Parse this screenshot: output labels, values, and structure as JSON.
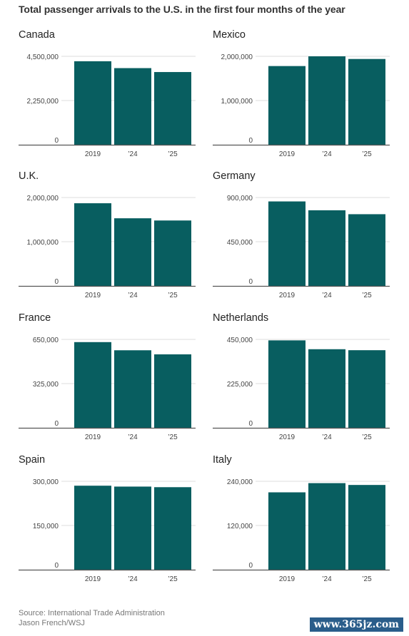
{
  "title": "Total passenger arrivals to the U.S. in the first four months of the year",
  "source_line": "Source: International Trade Administration",
  "credit_line": "Jason French/WSJ",
  "watermark": "www.365jz.com",
  "colors": {
    "bar": "#085e60",
    "grid": "#dddddd",
    "axis": "#555555",
    "tick_text": "#444444"
  },
  "chart_data": [
    {
      "type": "bar",
      "title": "Canada",
      "categories": [
        "2019",
        "’24",
        "’25"
      ],
      "values": [
        4250000,
        3900000,
        3700000
      ],
      "ylim": [
        0,
        4500000
      ],
      "yticks": [
        0,
        2250000,
        4500000
      ],
      "ytick_labels": [
        "0",
        "2,250,000",
        "4,500,000"
      ],
      "xlabel": "",
      "ylabel": "",
      "grid": true
    },
    {
      "type": "bar",
      "title": "Mexico",
      "categories": [
        "2019",
        "’24",
        "’25"
      ],
      "values": [
        1780000,
        2000000,
        1940000
      ],
      "ylim": [
        0,
        2000000
      ],
      "yticks": [
        0,
        1000000,
        2000000
      ],
      "ytick_labels": [
        "0",
        "1,000,000",
        "2,000,000"
      ],
      "xlabel": "",
      "ylabel": "",
      "grid": true
    },
    {
      "type": "bar",
      "title": "U.K.",
      "categories": [
        "2019",
        "’24",
        "’25"
      ],
      "values": [
        1870000,
        1530000,
        1480000
      ],
      "ylim": [
        0,
        2000000
      ],
      "yticks": [
        0,
        1000000,
        2000000
      ],
      "ytick_labels": [
        "0",
        "1,000,000",
        "2,000,000"
      ],
      "xlabel": "",
      "ylabel": "",
      "grid": true
    },
    {
      "type": "bar",
      "title": "Germany",
      "categories": [
        "2019",
        "’24",
        "’25"
      ],
      "values": [
        860000,
        770000,
        730000
      ],
      "ylim": [
        0,
        900000
      ],
      "yticks": [
        0,
        450000,
        900000
      ],
      "ytick_labels": [
        "0",
        "450,000",
        "900,000"
      ],
      "xlabel": "",
      "ylabel": "",
      "grid": true
    },
    {
      "type": "bar",
      "title": "France",
      "categories": [
        "2019",
        "’24",
        "’25"
      ],
      "values": [
        630000,
        570000,
        540000
      ],
      "ylim": [
        0,
        650000
      ],
      "yticks": [
        0,
        325000,
        650000
      ],
      "ytick_labels": [
        "0",
        "325,000",
        "650,000"
      ],
      "xlabel": "",
      "ylabel": "",
      "grid": true
    },
    {
      "type": "bar",
      "title": "Netherlands",
      "categories": [
        "2019",
        "’24",
        "’25"
      ],
      "values": [
        445000,
        400000,
        395000
      ],
      "ylim": [
        0,
        450000
      ],
      "yticks": [
        0,
        225000,
        450000
      ],
      "ytick_labels": [
        "0",
        "225,000",
        "450,000"
      ],
      "xlabel": "",
      "ylabel": "",
      "grid": true
    },
    {
      "type": "bar",
      "title": "Spain",
      "categories": [
        "2019",
        "’24",
        "’25"
      ],
      "values": [
        285000,
        282000,
        280000
      ],
      "ylim": [
        0,
        300000
      ],
      "yticks": [
        0,
        150000,
        300000
      ],
      "ytick_labels": [
        "0",
        "150,000",
        "300,000"
      ],
      "xlabel": "",
      "ylabel": "",
      "grid": true
    },
    {
      "type": "bar",
      "title": "Italy",
      "categories": [
        "2019",
        "’24",
        "’25"
      ],
      "values": [
        210000,
        235000,
        230000
      ],
      "ylim": [
        0,
        240000
      ],
      "yticks": [
        0,
        120000,
        240000
      ],
      "ytick_labels": [
        "0",
        "120,000",
        "240,000"
      ],
      "xlabel": "",
      "ylabel": "",
      "grid": true
    }
  ]
}
